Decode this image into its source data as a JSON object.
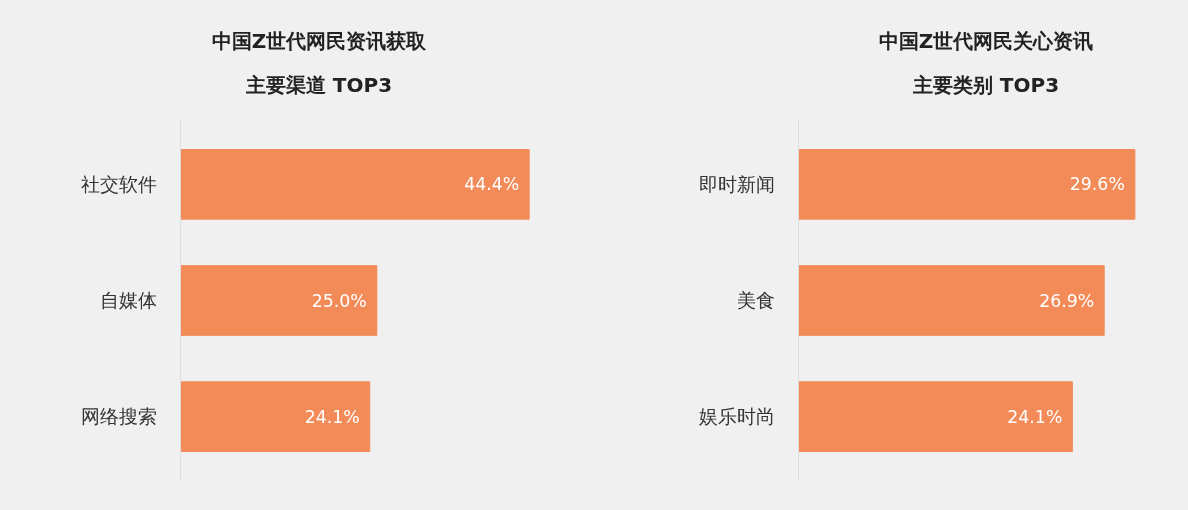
{
  "chart_data": [
    {
      "type": "bar",
      "orientation": "horizontal",
      "title": "中国Z世代网民资讯获取主要渠道 TOP3",
      "categories": [
        "社交软件",
        "自媒体",
        "网络搜索"
      ],
      "values": [
        44.4,
        25.0,
        24.1
      ],
      "value_labels": [
        "44.4%",
        "25.0%",
        "24.1%"
      ],
      "color": "#f28b58",
      "tick_labels": "y",
      "grid": false
    },
    {
      "type": "bar",
      "orientation": "horizontal",
      "title": "中国Z世代网民关心资讯主要类别 TOP3",
      "categories": [
        "即时新闻",
        "美食",
        "娱乐时尚"
      ],
      "values": [
        29.6,
        26.9,
        24.1
      ],
      "value_labels": [
        "29.6%",
        "26.9%",
        "24.1%"
      ],
      "color": "#f28b58",
      "tick_labels": "y",
      "grid": false
    }
  ]
}
